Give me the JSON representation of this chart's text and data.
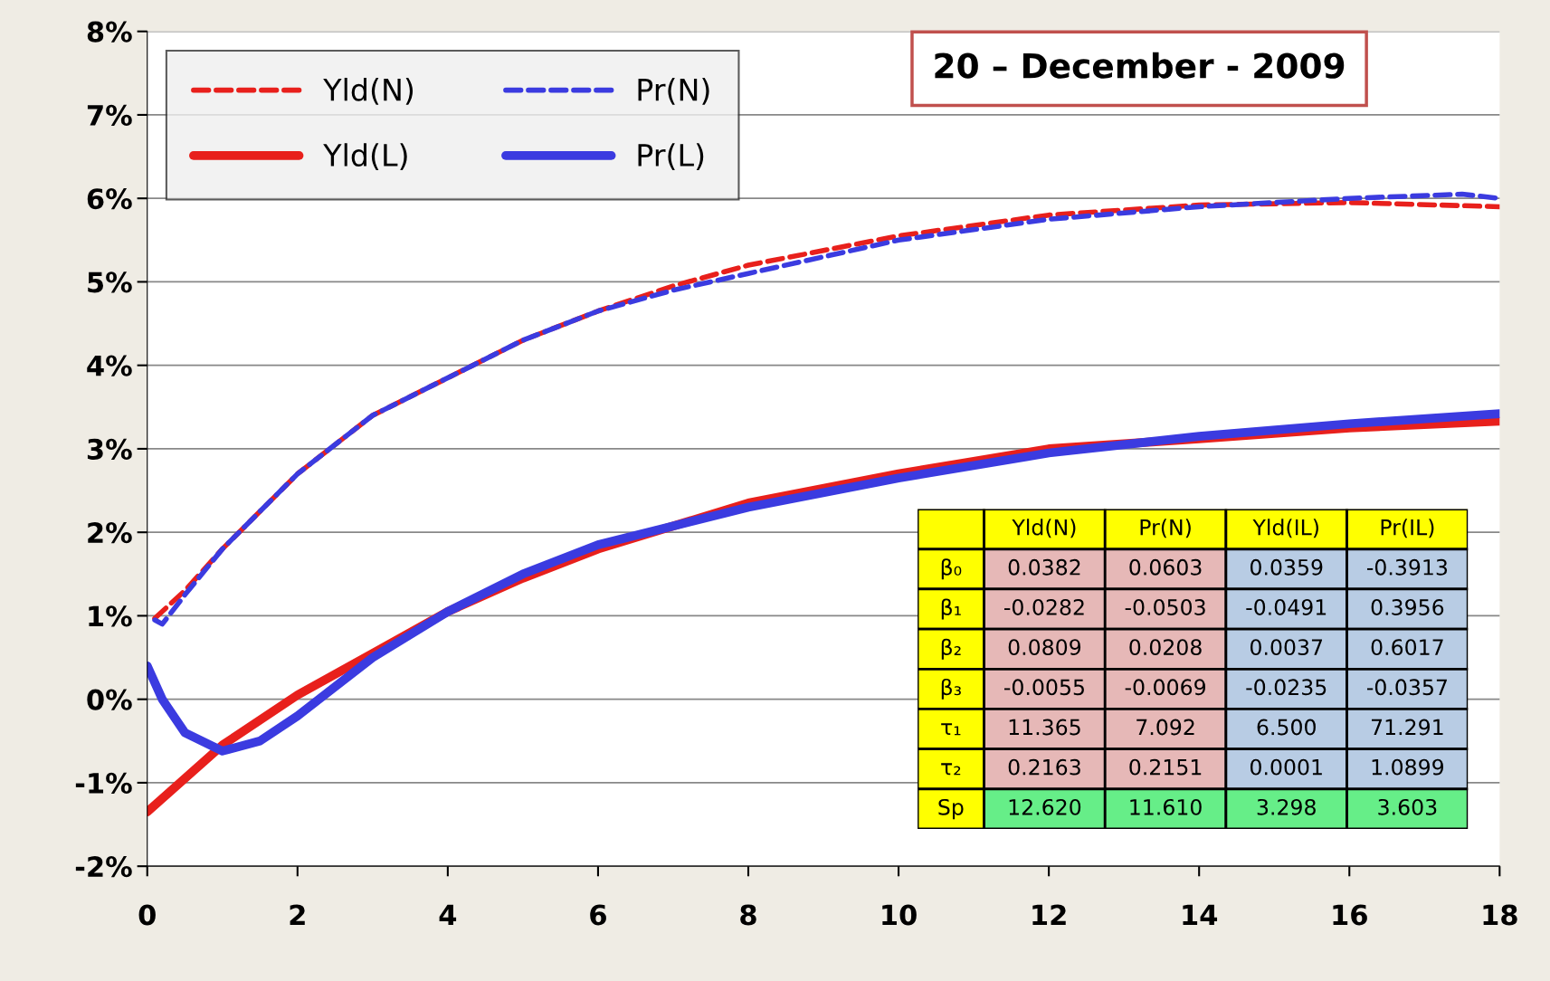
{
  "chart_data": [
    {
      "type": "line",
      "annotations": [
        "20 – December - 2009"
      ],
      "xlim": [
        0,
        18
      ],
      "xticks": [
        0,
        2,
        4,
        6,
        8,
        10,
        12,
        14,
        16,
        18
      ],
      "ylim": [
        -2,
        8
      ],
      "yticks": [
        {
          "value": -2,
          "label": "-2%"
        },
        {
          "value": -1,
          "label": "-1%"
        },
        {
          "value": 0,
          "label": "0%"
        },
        {
          "value": 1,
          "label": "1%"
        },
        {
          "value": 2,
          "label": "2%"
        },
        {
          "value": 3,
          "label": "3%"
        },
        {
          "value": 4,
          "label": "4%"
        },
        {
          "value": 5,
          "label": "5%"
        },
        {
          "value": 6,
          "label": "6%"
        },
        {
          "value": 7,
          "label": "7%"
        },
        {
          "value": 8,
          "label": "8%"
        }
      ],
      "grid": "y",
      "legend": "top left",
      "series": [
        {
          "name": "Yld(N)",
          "color": "#e8201c",
          "line_style": "dashed",
          "x": [
            0.1,
            0.5,
            1,
            2,
            3,
            4,
            5,
            6,
            7,
            8,
            10,
            12,
            14,
            16,
            18
          ],
          "values": [
            0.97,
            1.3,
            1.8,
            2.7,
            3.4,
            3.85,
            4.3,
            4.65,
            4.95,
            5.2,
            5.55,
            5.8,
            5.92,
            5.95,
            5.9
          ]
        },
        {
          "name": "Pr(N)",
          "color": "#3b3be0",
          "line_style": "dashed",
          "x": [
            0.1,
            0.2,
            0.5,
            1,
            2,
            3,
            4,
            5,
            6,
            7,
            8,
            10,
            12,
            14,
            16,
            17.5,
            18
          ],
          "values": [
            0.95,
            0.9,
            1.25,
            1.8,
            2.7,
            3.4,
            3.85,
            4.3,
            4.65,
            4.9,
            5.1,
            5.5,
            5.75,
            5.9,
            6.0,
            6.05,
            6.0
          ]
        },
        {
          "name": "Yld(L)",
          "color": "#e8201c",
          "line_style": "solid",
          "x": [
            0,
            1,
            2,
            3,
            4,
            5,
            6,
            8,
            10,
            12,
            14,
            16,
            18
          ],
          "values": [
            -1.35,
            -0.55,
            0.05,
            0.55,
            1.05,
            1.45,
            1.8,
            2.35,
            2.7,
            3.0,
            3.12,
            3.25,
            3.33
          ]
        },
        {
          "name": "Pr(L)",
          "color": "#3b3be0",
          "line_style": "solid",
          "x": [
            0,
            0.2,
            0.5,
            1,
            1.5,
            2,
            3,
            4,
            5,
            6,
            8,
            10,
            12,
            14,
            16,
            18
          ],
          "values": [
            0.4,
            0.0,
            -0.4,
            -0.62,
            -0.5,
            -0.2,
            0.5,
            1.05,
            1.5,
            1.85,
            2.3,
            2.65,
            2.95,
            3.15,
            3.3,
            3.42
          ]
        }
      ]
    },
    {
      "type": "other",
      "categories": [
        "Yld(N)",
        "Pr(N)",
        "Yld(IL)",
        "Pr(IL)"
      ],
      "y_categories": [
        "β₀",
        "β₁",
        "β₂",
        "β₃",
        "τ₁",
        "τ₂",
        "Sp"
      ],
      "cell_labels": [
        [
          "0.0382",
          "0.0603",
          "0.0359",
          "-0.3913"
        ],
        [
          "-0.0282",
          "-0.0503",
          "-0.0491",
          "0.3956"
        ],
        [
          "0.0809",
          "0.0208",
          "0.0037",
          "0.6017"
        ],
        [
          "-0.0055",
          "-0.0069",
          "-0.0235",
          "-0.0357"
        ],
        [
          "11.365",
          "7.092",
          "6.500",
          "71.291"
        ],
        [
          "0.2163",
          "0.2151",
          "0.0001",
          "1.0899"
        ],
        [
          "12.620",
          "11.610",
          "3.298",
          "3.603"
        ]
      ]
    }
  ]
}
